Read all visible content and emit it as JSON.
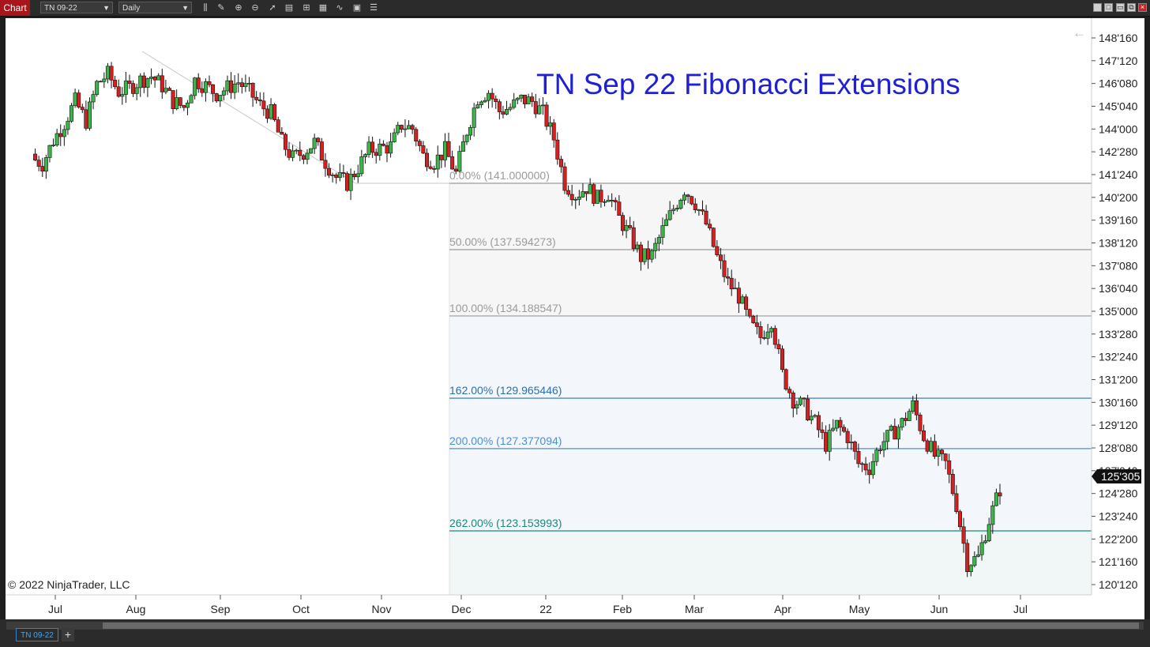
{
  "window": {
    "tab_label": "Chart",
    "instrument": "TN 09-22",
    "period": "Daily"
  },
  "toolbar_icons": [
    "bar-type-icon",
    "draw-pencil-icon",
    "zoom-in-icon",
    "zoom-out-icon",
    "pointer-icon",
    "data-box-icon",
    "properties-icon",
    "templates-icon",
    "strategies-icon",
    "indicators-icon",
    "show-list-icon"
  ],
  "bottom": {
    "tab": "TN 09-22",
    "add": "+"
  },
  "chart_data": {
    "type": "candlestick",
    "title": "TN Sep 22 Fibonacci Extensions",
    "copyright": "© 2022 NinjaTrader, LLC",
    "last_price": "125'305",
    "y_ticks": [
      "148'160",
      "147'120",
      "146'080",
      "145'040",
      "144'000",
      "142'280",
      "141'240",
      "140'200",
      "139'160",
      "138'120",
      "137'080",
      "136'040",
      "135'000",
      "133'280",
      "132'240",
      "131'200",
      "130'160",
      "129'120",
      "128'080",
      "127'040",
      "125'305",
      "124'280",
      "123'240",
      "122'200",
      "121'160",
      "120'120"
    ],
    "x_ticks": [
      "Jul",
      "Aug",
      "Sep",
      "Oct",
      "Nov",
      "Dec",
      "22",
      "Feb",
      "Mar",
      "Apr",
      "May",
      "Jun",
      "Jul"
    ],
    "fib_levels": [
      {
        "label": "0.00% (141.000000)",
        "value": 141.0,
        "color": "#9a9a9a"
      },
      {
        "label": "50.00% (137.594273)",
        "value": 137.594273,
        "color": "#9a9a9a"
      },
      {
        "label": "100.00% (134.188547)",
        "value": 134.188547,
        "color": "#9a9a9a"
      },
      {
        "label": "162.00% (129.965446)",
        "value": 129.965446,
        "color": "#2f6fa8"
      },
      {
        "label": "200.00% (127.377094)",
        "value": 127.377094,
        "color": "#4a90d9"
      },
      {
        "label": "262.00% (123.153993)",
        "value": 123.153993,
        "color": "#1a8a7a"
      }
    ],
    "candle_closes": [
      142.3,
      142.0,
      143.2,
      144.1,
      145.2,
      144.2,
      146.1,
      146.6,
      145.7,
      145.9,
      146.3,
      146.5,
      146.0,
      145.2,
      144.9,
      146.3,
      146.0,
      145.6,
      145.9,
      146.2,
      145.7,
      145.0,
      144.6,
      143.1,
      142.3,
      142.6,
      143.1,
      142.1,
      141.3,
      141.0,
      141.8,
      142.7,
      142.8,
      142.9,
      144.0,
      143.8,
      142.4,
      142.1,
      142.7,
      141.5,
      143.7,
      145.4,
      145.7,
      144.7,
      144.9,
      145.3,
      145.2,
      144.6,
      143.3,
      141.0,
      140.4,
      140.8,
      140.2,
      140.5,
      139.2,
      138.3,
      137.2,
      137.3,
      138.6,
      139.7,
      140.7,
      140.0,
      138.9,
      137.2,
      135.9,
      135.2,
      133.8,
      133.1,
      134.0,
      131.2,
      129.9,
      129.5,
      128.7,
      127.6,
      128.6,
      128.0,
      126.6,
      126.4,
      127.6,
      128.1,
      128.7,
      129.6,
      128.0,
      127.0,
      126.6,
      124.5,
      121.5,
      121.8,
      123.7,
      125.3
    ],
    "date_range": [
      "Jun 2021",
      "Jun 2022"
    ]
  }
}
